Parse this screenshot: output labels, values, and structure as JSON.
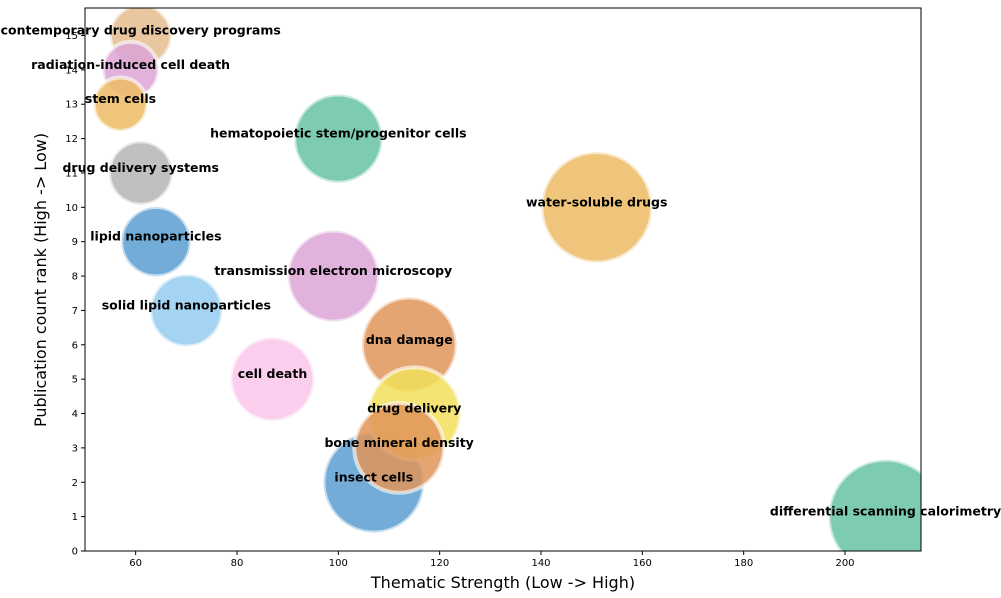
{
  "chart_data": {
    "type": "scatter",
    "title": "",
    "xlabel": "Thematic Strength (Low -> High)",
    "ylabel": "Publication count rank (High -> Low)",
    "xlim": [
      50,
      215
    ],
    "ylim": [
      0,
      15.8
    ],
    "xticks": [
      60,
      80,
      100,
      120,
      140,
      160,
      180,
      200
    ],
    "yticks": [
      0,
      1,
      2,
      3,
      4,
      5,
      6,
      7,
      8,
      9,
      10,
      11,
      12,
      13,
      14,
      15
    ],
    "grid": false,
    "size_encoding": "bubble area",
    "points": [
      {
        "label": "differential scanning calorimetry",
        "x": 208,
        "y": 1,
        "size": 1.0,
        "color": "#66c2a5"
      },
      {
        "label": "insect cells",
        "x": 107,
        "y": 2,
        "size": 0.78,
        "color": "#5b9fd0"
      },
      {
        "label": "bone mineral density",
        "x": 112,
        "y": 3,
        "size": 0.62,
        "color": "#e0955a"
      },
      {
        "label": "drug delivery",
        "x": 115,
        "y": 4,
        "size": 0.66,
        "color": "#f1df5c"
      },
      {
        "label": "cell death",
        "x": 87,
        "y": 5,
        "size": 0.54,
        "color": "#fbc6ea"
      },
      {
        "label": "dna damage",
        "x": 114,
        "y": 6,
        "size": 0.69,
        "color": "#e0955a"
      },
      {
        "label": "solid lipid nanoparticles",
        "x": 70,
        "y": 7,
        "size": 0.4,
        "color": "#95ccf0"
      },
      {
        "label": "transmission electron microscopy",
        "x": 99,
        "y": 8,
        "size": 0.64,
        "color": "#dba4d6"
      },
      {
        "label": "lipid nanoparticles",
        "x": 64,
        "y": 9,
        "size": 0.37,
        "color": "#5b9fd0"
      },
      {
        "label": "water-soluble drugs",
        "x": 151,
        "y": 10,
        "size": 0.94,
        "color": "#ecbb64"
      },
      {
        "label": "drug delivery systems",
        "x": 61,
        "y": 11,
        "size": 0.31,
        "color": "#b5b5b5"
      },
      {
        "label": "hematopoietic stem/progenitor cells",
        "x": 100,
        "y": 12,
        "size": 0.6,
        "color": "#66c2a5"
      },
      {
        "label": "stem cells",
        "x": 57,
        "y": 13,
        "size": 0.22,
        "color": "#ecbb64"
      },
      {
        "label": "radiation-induced cell death",
        "x": 59,
        "y": 14,
        "size": 0.24,
        "color": "#dba4d6"
      },
      {
        "label": "contemporary drug discovery programs",
        "x": 61,
        "y": 15,
        "size": 0.29,
        "color": "#e3bc8f"
      }
    ]
  }
}
